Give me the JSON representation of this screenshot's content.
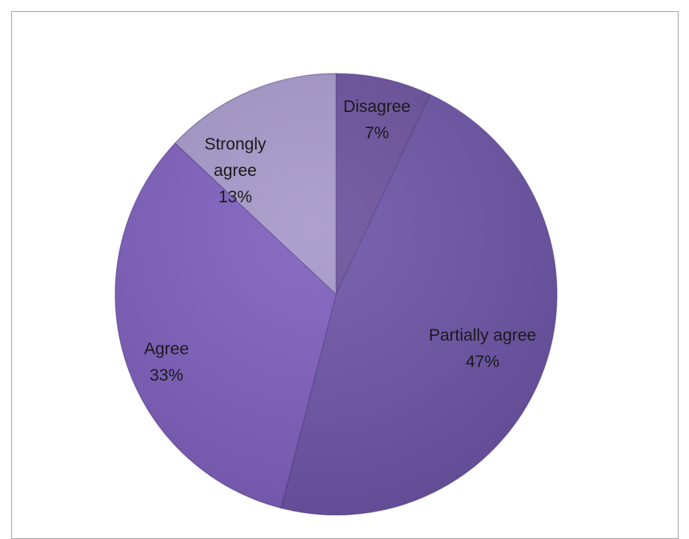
{
  "chart_data": {
    "type": "pie",
    "start_angle_deg": 0,
    "direction": "clockwise",
    "legend": "none",
    "slices": [
      {
        "label_lines": [
          "Disagree"
        ],
        "value": 7,
        "value_label": "7%",
        "color": "#6a4f9c"
      },
      {
        "label_lines": [
          "Partially agree"
        ],
        "value": 47,
        "value_label": "47%",
        "color": "#6b53a6"
      },
      {
        "label_lines": [
          "Agree"
        ],
        "value": 33,
        "value_label": "33%",
        "color": "#7d5ebd"
      },
      {
        "label_lines": [
          "Strongly",
          "agree"
        ],
        "value": 13,
        "value_label": "13%",
        "color": "#a597c9"
      }
    ]
  }
}
